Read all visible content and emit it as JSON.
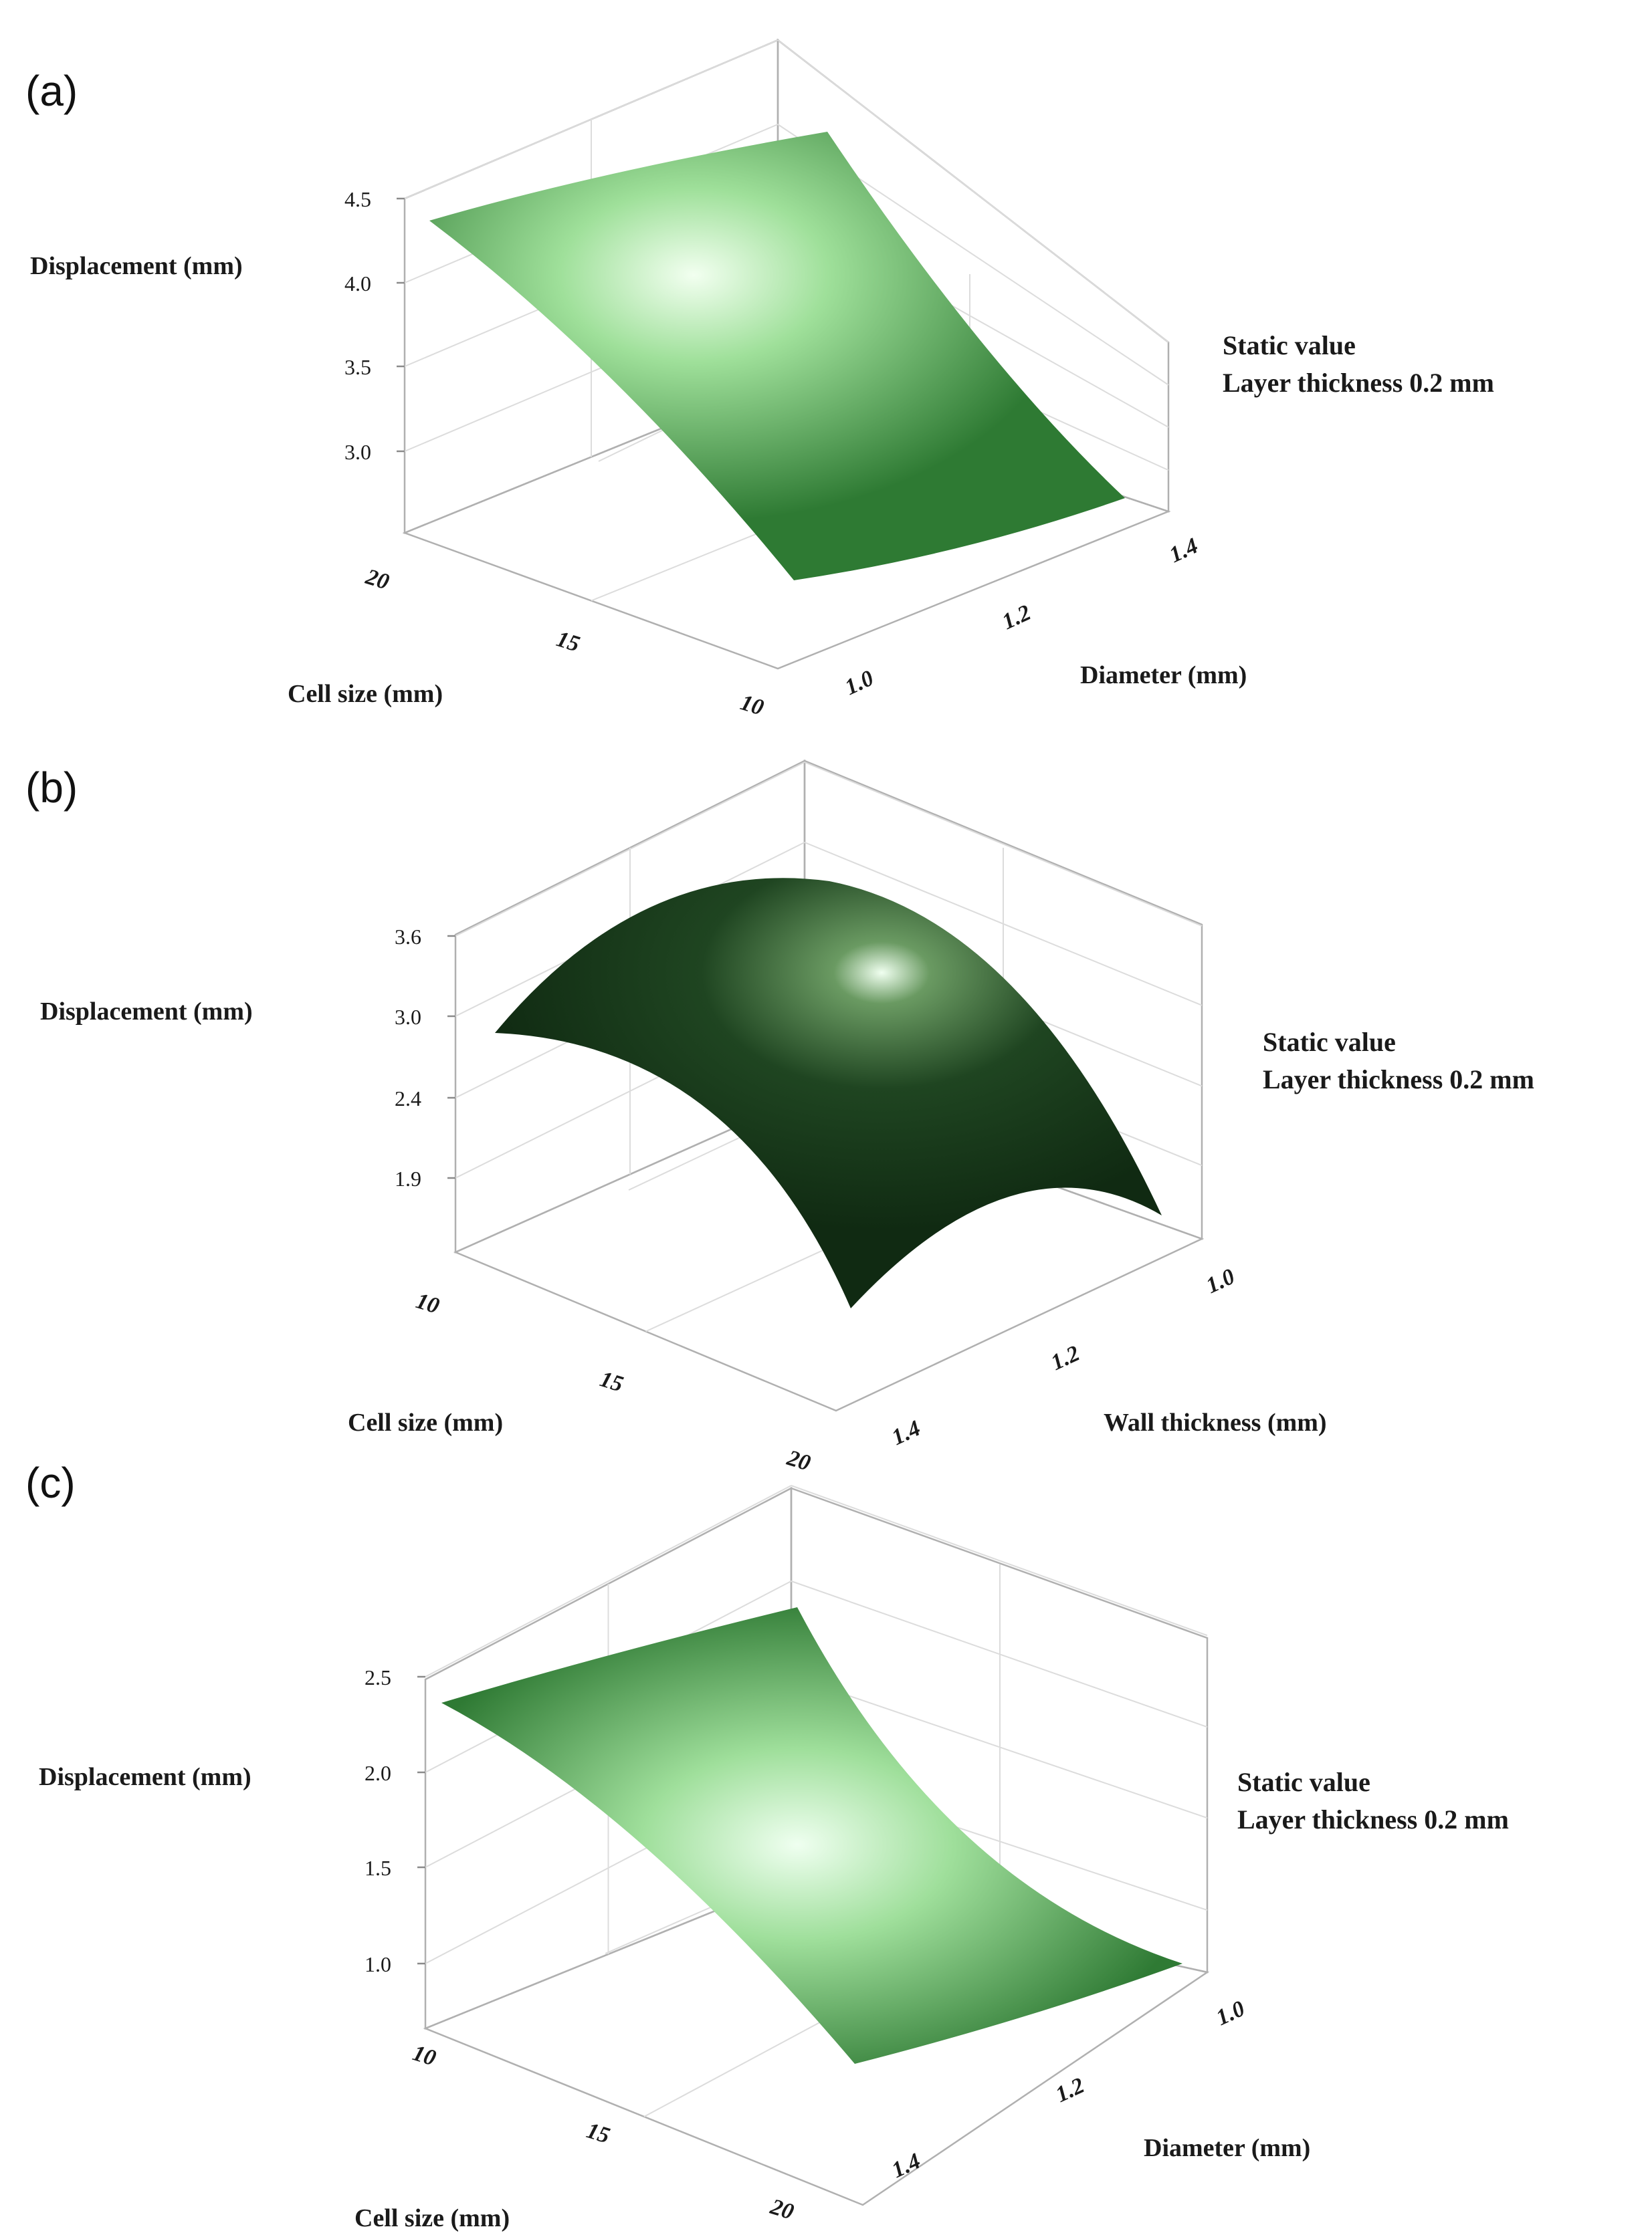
{
  "chart_data": [
    {
      "panel": "(a)",
      "type": "surface",
      "zlabel": "Displacement (mm)",
      "xlabel": "Cell size (mm)",
      "ylabel": "Diameter (mm)",
      "static_title": "Static value",
      "static_value": "Layer thickness 0.2 mm",
      "zticks": [
        "4.5",
        "4.0",
        "3.5",
        "3.0"
      ],
      "xticks": [
        "20",
        "15",
        "10"
      ],
      "yticks": [
        "1.0",
        "1.2",
        "1.4"
      ],
      "zlim": [
        2.6,
        4.5
      ],
      "surface_color": "#2f7d32",
      "x_values": [
        10,
        15,
        20
      ],
      "y_values": [
        1.0,
        1.2,
        1.4
      ],
      "z_values": [
        [
          4.55,
          3.85,
          3.3
        ],
        [
          4.05,
          3.45,
          2.95
        ],
        [
          3.55,
          3.05,
          2.65
        ]
      ]
    },
    {
      "panel": "(b)",
      "type": "surface",
      "zlabel": "Displacement (mm)",
      "xlabel": "Cell size (mm)",
      "ylabel": "Wall thickness (mm)",
      "static_title": "Static value",
      "static_value": "Layer thickness 0.2 mm",
      "zticks": [
        "3.6",
        "3.0",
        "2.4",
        "1.9"
      ],
      "xticks": [
        "10",
        "15",
        "20"
      ],
      "yticks": [
        "1.0",
        "1.2",
        "1.4"
      ],
      "zlim": [
        1.5,
        3.7
      ],
      "surface_color": "#1f4a22",
      "x_values": [
        10,
        15,
        20
      ],
      "y_values": [
        1.0,
        1.2,
        1.4
      ],
      "z_values": [
        [
          3.2,
          3.5,
          2.4
        ],
        [
          3.3,
          3.6,
          2.5
        ],
        [
          2.8,
          3.1,
          1.6
        ]
      ]
    },
    {
      "panel": "(c)",
      "type": "surface",
      "zlabel": "Displacement (mm)",
      "xlabel": "Cell size (mm)",
      "ylabel": "Diameter (mm)",
      "static_title": "Static value",
      "static_value": "Layer thickness 0.2 mm",
      "zticks": [
        "2.5",
        "2.0",
        "1.5",
        "1.0"
      ],
      "xticks": [
        "10",
        "15",
        "20"
      ],
      "yticks": [
        "1.0",
        "1.2",
        "1.4"
      ],
      "zlim": [
        0.7,
        2.6
      ],
      "surface_color": "#2e7a34",
      "x_values": [
        10,
        15,
        20
      ],
      "y_values": [
        1.0,
        1.2,
        1.4
      ],
      "z_values": [
        [
          2.55,
          2.1,
          1.7
        ],
        [
          2.35,
          1.85,
          1.4
        ],
        [
          1.9,
          1.45,
          0.95
        ]
      ]
    }
  ]
}
